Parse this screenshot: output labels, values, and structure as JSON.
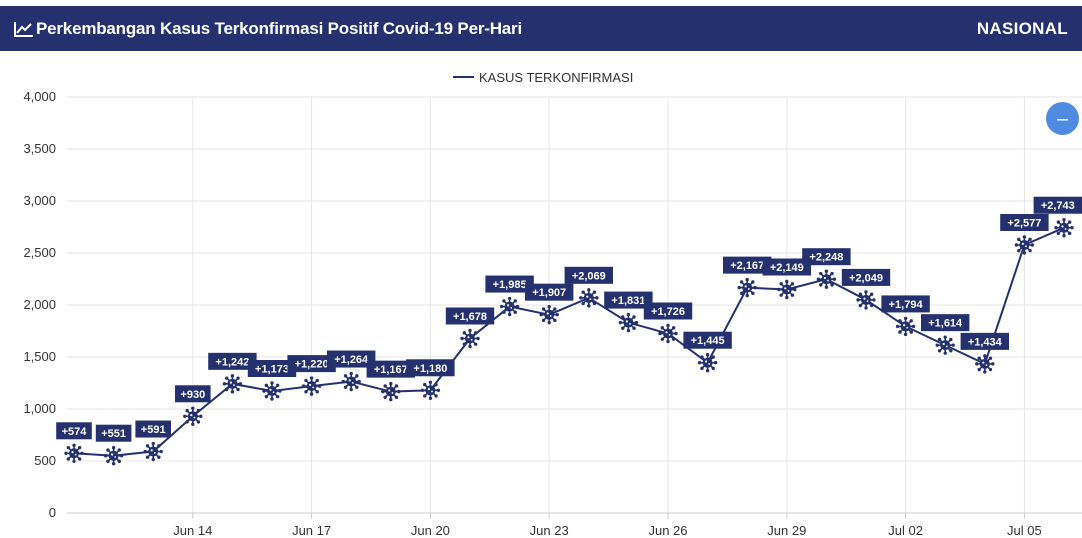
{
  "header": {
    "title": "Perkembangan Kasus Terkonfirmasi Positif Covid-19 Per-Hari",
    "scope": "NASIONAL",
    "icon": "line-chart-icon"
  },
  "zoom_button": {
    "symbol": "–",
    "icon": "zoom-out-icon"
  },
  "colors": {
    "header": "#25306e",
    "series": "#25306e",
    "zoom": "#4f8be0"
  },
  "chart_data": {
    "type": "line",
    "legend_position": "top-center",
    "grid": true,
    "ylim": [
      0,
      4000
    ],
    "y_ticks": [
      "0",
      "500",
      "1,000",
      "1,500",
      "2,000",
      "2,500",
      "3,000",
      "3,500",
      "4,000"
    ],
    "y_tick_values": [
      0,
      500,
      1000,
      1500,
      2000,
      2500,
      3000,
      3500,
      4000
    ],
    "x_ticks": [
      "Jun 14",
      "Jun 17",
      "Jun 20",
      "Jun 23",
      "Jun 26",
      "Jun 29",
      "Jul 02",
      "Jul 05"
    ],
    "x_tick_dates": [
      "2020-06-14",
      "2020-06-17",
      "2020-06-20",
      "2020-06-23",
      "2020-06-26",
      "2020-06-29",
      "2020-07-02",
      "2020-07-05"
    ],
    "x": [
      "2020-06-11",
      "2020-06-12",
      "2020-06-13",
      "2020-06-14",
      "2020-06-15",
      "2020-06-16",
      "2020-06-17",
      "2020-06-18",
      "2020-06-19",
      "2020-06-20",
      "2020-06-21",
      "2020-06-22",
      "2020-06-23",
      "2020-06-24",
      "2020-06-25",
      "2020-06-26",
      "2020-06-27",
      "2020-06-28",
      "2020-06-29",
      "2020-06-30",
      "2020-07-01",
      "2020-07-02",
      "2020-07-03",
      "2020-07-04",
      "2020-07-05",
      "2020-07-06"
    ],
    "series": [
      {
        "name": "KASUS TERKONFIRMASI",
        "values": [
          574,
          551,
          591,
          930,
          1242,
          1173,
          1220,
          1264,
          1167,
          1180,
          1678,
          1985,
          1907,
          2069,
          1831,
          1726,
          1445,
          2167,
          2149,
          2248,
          2049,
          1794,
          1614,
          1434,
          2577,
          2743
        ],
        "labels": [
          "+574",
          "+551",
          "+591",
          "+930",
          "+1,242",
          "+1,173",
          "+1,220",
          "+1,264",
          "+1,167",
          "+1,180",
          "+1,678",
          "+1,985",
          "+1,907",
          "+2,069",
          "+1,831",
          "+1,726",
          "+1,445",
          "+2,167",
          "+2,149",
          "+2,248",
          "+2,049",
          "+1,794",
          "+1,614",
          "+1,434",
          "+2,577",
          "+2,743"
        ]
      }
    ]
  }
}
